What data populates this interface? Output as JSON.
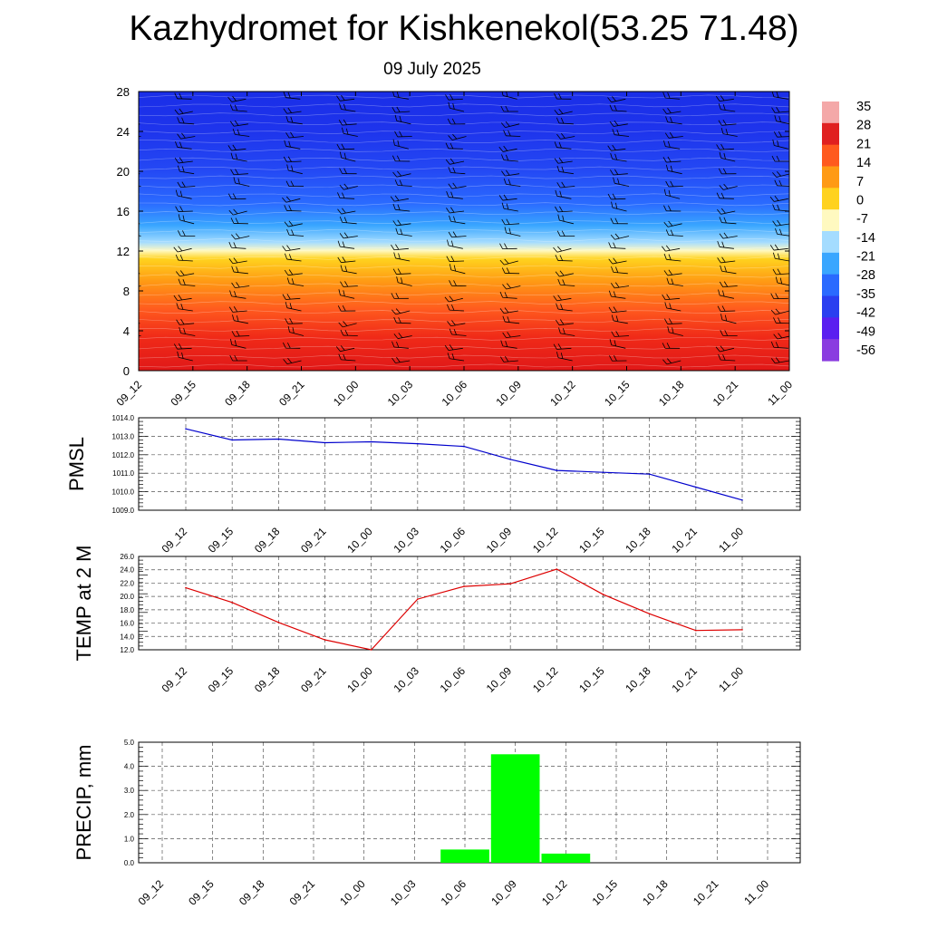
{
  "title": "Kazhydromet for Kishkenekol(53.25 71.48)",
  "subtitle": "09 July 2025",
  "time_labels": [
    "09_12",
    "09_15",
    "09_18",
    "09_21",
    "10_00",
    "10_03",
    "10_06",
    "10_09",
    "10_12",
    "10_15",
    "10_18",
    "10_21",
    "11_00"
  ],
  "chart_data": [
    {
      "type": "heatmap",
      "title": "Kazhydromet for Kishkenekol(53.25 71.48)",
      "subtitle": "09 July 2025",
      "x": [
        "09_12",
        "09_15",
        "09_18",
        "09_21",
        "10_00",
        "10_03",
        "10_06",
        "10_09",
        "10_12",
        "10_15",
        "10_18",
        "10_21",
        "11_00"
      ],
      "y_ticks": [
        0,
        4,
        8,
        12,
        16,
        20,
        24,
        28
      ],
      "ylim": [
        0,
        28
      ],
      "colorbar": {
        "labels": [
          "35",
          "28",
          "21",
          "14",
          "7",
          "0",
          "-7",
          "-14",
          "-21",
          "-28",
          "-35",
          "-42",
          "-49",
          "-56"
        ],
        "range": [
          -60,
          38
        ],
        "colors": [
          "#f4a8a8",
          "#e02020",
          "#ff5a1e",
          "#ff9a14",
          "#ffd21e",
          "#fff9c0",
          "#a4dcff",
          "#39a6ff",
          "#2a6aff",
          "#2a3ef0",
          "#5a1ef0",
          "#8a3ce0"
        ]
      },
      "temperature_profile": [
        {
          "level": 0,
          "value": 30
        },
        {
          "level": 4,
          "value": 22
        },
        {
          "level": 8,
          "value": 10
        },
        {
          "level": 12,
          "value": -12
        },
        {
          "level": 13,
          "value": -20
        },
        {
          "level": 16,
          "value": -38
        },
        {
          "level": 20,
          "value": -50
        },
        {
          "level": 24,
          "value": -55
        },
        {
          "level": 28,
          "value": -57
        }
      ],
      "overlay": "wind barbs",
      "grid": false
    },
    {
      "type": "line",
      "ylabel": "PMSL",
      "categories": [
        "09_12",
        "09_15",
        "09_18",
        "09_21",
        "10_00",
        "10_03",
        "10_06",
        "10_09",
        "10_12",
        "10_15",
        "10_18",
        "10_21",
        "11_00"
      ],
      "series": [
        {
          "values": [
            1013.4,
            1012.8,
            1012.85,
            1012.65,
            1012.7,
            1012.6,
            1012.45,
            1011.75,
            1011.15,
            1011.05,
            1010.95,
            1010.25,
            1009.55
          ],
          "color": "#0000cc"
        }
      ],
      "ylim": [
        1009.0,
        1014.0
      ],
      "y_ticks": [
        "1009.0",
        "1010.0",
        "1011.0",
        "1012.0",
        "1013.0",
        "1014.0"
      ],
      "grid": true
    },
    {
      "type": "line",
      "ylabel": "TEMP at 2 M",
      "categories": [
        "09_12",
        "09_15",
        "09_18",
        "09_21",
        "10_00",
        "10_03",
        "10_06",
        "10_09",
        "10_12",
        "10_15",
        "10_18",
        "10_21",
        "11_00"
      ],
      "series": [
        {
          "values": [
            21.3,
            19.1,
            16.1,
            13.5,
            12.0,
            19.6,
            21.5,
            21.9,
            24.1,
            20.3,
            17.4,
            14.9,
            15.0
          ],
          "color": "#dd0000"
        }
      ],
      "ylim": [
        12.0,
        26.0
      ],
      "y_ticks": [
        "12.0",
        "14.0",
        "16.0",
        "18.0",
        "20.0",
        "22.0",
        "24.0",
        "26.0"
      ],
      "grid": true
    },
    {
      "type": "bar",
      "ylabel": "PRECIP, mm",
      "categories": [
        "09_12",
        "09_15",
        "09_18",
        "09_21",
        "10_00",
        "10_03",
        "10_06",
        "10_09",
        "10_12",
        "10_15",
        "10_18",
        "10_21",
        "11_00"
      ],
      "series": [
        {
          "values": [
            0,
            0,
            0,
            0,
            0,
            0,
            0.55,
            4.5,
            0.38,
            0,
            0,
            0,
            0
          ],
          "color": "#00ff00"
        }
      ],
      "ylim": [
        0.0,
        5.0
      ],
      "y_ticks": [
        "0.0",
        "1.0",
        "2.0",
        "3.0",
        "4.0",
        "5.0"
      ],
      "grid": true
    }
  ]
}
